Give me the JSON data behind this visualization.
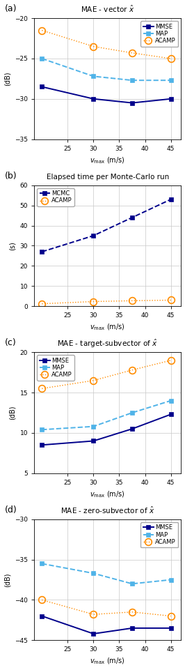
{
  "x": [
    20,
    30,
    37.5,
    45
  ],
  "panel_a": {
    "title": "MAE - vector $\\hat{x}$",
    "ylabel": "(dB)",
    "xlabel": "$v_{\\mathrm{max}}$ (m/s)",
    "mmse": [
      -28.5,
      -30.0,
      -30.5,
      -30.0
    ],
    "map": [
      -25.0,
      -27.2,
      -27.7,
      -27.7
    ],
    "acamp": [
      -21.5,
      -23.5,
      -24.3,
      -25.0
    ],
    "ylim": [
      -35,
      -20
    ],
    "yticks": [
      -35,
      -30,
      -25,
      -20
    ]
  },
  "panel_b": {
    "title": "Elapsed time per Monte-Carlo run",
    "ylabel": "(s)",
    "xlabel": "$v_{\\mathrm{max}}$ (m/s)",
    "mcmc": [
      27,
      35,
      44,
      53
    ],
    "acamp": [
      1.2,
      2.3,
      2.7,
      3.0
    ],
    "ylim": [
      0,
      60
    ],
    "yticks": [
      0,
      10,
      20,
      30,
      40,
      50,
      60
    ]
  },
  "panel_c": {
    "title": "MAE - target-subvector of $\\hat{x}$",
    "ylabel": "(dB)",
    "xlabel": "$v_{\\mathrm{max}}$ (m/s)",
    "mmse": [
      8.5,
      9.0,
      10.5,
      12.3
    ],
    "map": [
      10.4,
      10.8,
      12.5,
      14.0
    ],
    "acamp": [
      15.5,
      16.5,
      17.8,
      19.0
    ],
    "ylim": [
      5,
      20
    ],
    "yticks": [
      5,
      10,
      15,
      20
    ]
  },
  "panel_d": {
    "title": "MAE - zero-subvector of $\\hat{x}$",
    "ylabel": "(dB)",
    "xlabel": "$v_{\\mathrm{max}}$ (m/s)",
    "mmse": [
      -42.0,
      -44.2,
      -43.5,
      -43.5
    ],
    "map": [
      -35.5,
      -36.7,
      -38.0,
      -37.5
    ],
    "acamp": [
      -40.0,
      -41.8,
      -41.5,
      -42.0
    ],
    "ylim": [
      -45,
      -30
    ],
    "yticks": [
      -45,
      -40,
      -35,
      -30
    ]
  },
  "color_mmse": "#00008B",
  "color_map": "#4FB3E8",
  "color_acamp": "#FF8C00",
  "label_fontsize": 7,
  "title_fontsize": 7.5,
  "tick_fontsize": 6.5,
  "legend_fontsize": 6,
  "xticks": [
    25,
    30,
    35,
    40,
    45
  ],
  "xlim": [
    18.5,
    47
  ]
}
